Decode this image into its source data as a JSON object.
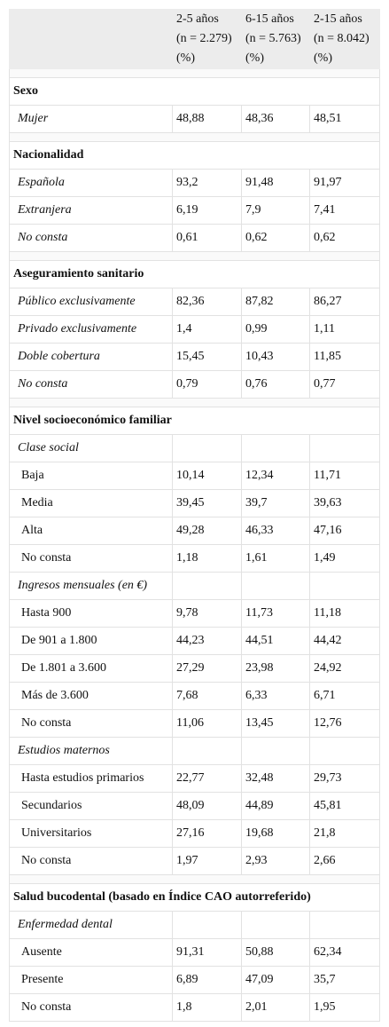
{
  "header": {
    "columns": [
      [
        "2-5 años",
        "(n = 2.279)",
        "(%)"
      ],
      [
        "6-15 años",
        "(n = 5.763)",
        "(%)"
      ],
      [
        "2-15 años",
        "(n = 8.042)",
        "(%)"
      ]
    ]
  },
  "sections": [
    {
      "title": "Sexo",
      "rows": [
        {
          "label": "Mujer",
          "values": [
            "48,88",
            "48,36",
            "48,51"
          ]
        }
      ]
    },
    {
      "title": "Nacionalidad",
      "rows": [
        {
          "label": "Española",
          "values": [
            "93,2",
            "91,48",
            "91,97"
          ]
        },
        {
          "label": "Extranjera",
          "values": [
            "6,19",
            "7,9",
            "7,41"
          ]
        },
        {
          "label": "No consta",
          "values": [
            "0,61",
            "0,62",
            "0,62"
          ]
        }
      ]
    },
    {
      "title": "Aseguramiento sanitario",
      "rows": [
        {
          "label": "Público exclusivamente",
          "values": [
            "82,36",
            "87,82",
            "86,27"
          ]
        },
        {
          "label": "Privado exclusivamente",
          "values": [
            "1,4",
            "0,99",
            "1,11"
          ]
        },
        {
          "label": "Doble cobertura",
          "values": [
            "15,45",
            "10,43",
            "11,85"
          ]
        },
        {
          "label": "No consta",
          "values": [
            "0,79",
            "0,76",
            "0,77"
          ]
        }
      ]
    },
    {
      "title": "Nivel socioeconómico familiar",
      "groups": [
        {
          "title": "Clase social",
          "rows": [
            {
              "label": "Baja",
              "values": [
                "10,14",
                "12,34",
                "11,71"
              ]
            },
            {
              "label": "Media",
              "values": [
                "39,45",
                "39,7",
                "39,63"
              ]
            },
            {
              "label": "Alta",
              "values": [
                "49,28",
                "46,33",
                "47,16"
              ]
            },
            {
              "label": "No consta",
              "values": [
                "1,18",
                "1,61",
                "1,49"
              ]
            }
          ]
        },
        {
          "title": "Ingresos mensuales (en €)",
          "rows": [
            {
              "label": "Hasta 900",
              "values": [
                "9,78",
                "11,73",
                "11,18"
              ]
            },
            {
              "label": "De 901 a 1.800",
              "values": [
                "44,23",
                "44,51",
                "44,42"
              ]
            },
            {
              "label": "De 1.801 a 3.600",
              "values": [
                "27,29",
                "23,98",
                "24,92"
              ]
            },
            {
              "label": "Más de 3.600",
              "values": [
                "7,68",
                "6,33",
                "6,71"
              ]
            },
            {
              "label": "No consta",
              "values": [
                "11,06",
                "13,45",
                "12,76"
              ]
            }
          ]
        },
        {
          "title": "Estudios maternos",
          "rows": [
            {
              "label": "Hasta estudios primarios",
              "values": [
                "22,77",
                "32,48",
                "29,73"
              ]
            },
            {
              "label": "Secundarios",
              "values": [
                "48,09",
                "44,89",
                "45,81"
              ]
            },
            {
              "label": "Universitarios",
              "values": [
                "27,16",
                "19,68",
                "21,8"
              ]
            },
            {
              "label": "No consta",
              "values": [
                "1,97",
                "2,93",
                "2,66"
              ]
            }
          ]
        }
      ]
    },
    {
      "title": "Salud bucodental (basado en Índice CAO autorreferido)",
      "groups": [
        {
          "title": "Enfermedad dental",
          "rows": [
            {
              "label": "Ausente",
              "values": [
                "91,31",
                "50,88",
                "62,34"
              ]
            },
            {
              "label": "Presente",
              "values": [
                "6,89",
                "47,09",
                "35,7"
              ]
            },
            {
              "label": "No consta",
              "values": [
                "1,8",
                "2,01",
                "1,95"
              ]
            }
          ]
        }
      ]
    }
  ]
}
